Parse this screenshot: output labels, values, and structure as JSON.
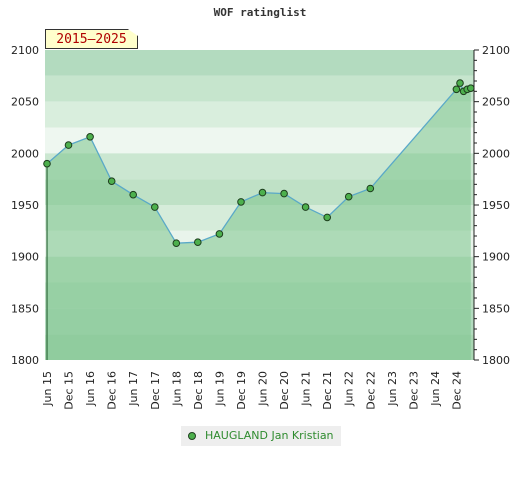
{
  "chart_data": {
    "type": "line",
    "title": "WOF ratinglist",
    "range_label": "2015–2025",
    "ylim": [
      1800,
      2100
    ],
    "y_ticks": [
      1800,
      1850,
      1900,
      1950,
      2000,
      2050,
      2100
    ],
    "x_ticks": [
      "Jun 15",
      "Dec 15",
      "Jun 16",
      "Dec 16",
      "Jun 17",
      "Dec 17",
      "Jun 18",
      "Dec 18",
      "Jun 19",
      "Dec 19",
      "Jun 20",
      "Dec 20",
      "Jun 21",
      "Dec 21",
      "Jun 22",
      "Dec 22",
      "Jun 23",
      "Dec 23",
      "Jun 24",
      "Dec 24"
    ],
    "series": [
      {
        "name": "HAUGLAND Jan Kristian",
        "color": "#4db04d",
        "line_color": "#5aa9c8",
        "points": [
          {
            "x": "2015-06",
            "y": 1990
          },
          {
            "x": "2015-12",
            "y": 2008
          },
          {
            "x": "2016-06",
            "y": 2016
          },
          {
            "x": "2016-12",
            "y": 1973
          },
          {
            "x": "2017-06",
            "y": 1960
          },
          {
            "x": "2017-12",
            "y": 1948
          },
          {
            "x": "2018-06",
            "y": 1913
          },
          {
            "x": "2018-12",
            "y": 1914
          },
          {
            "x": "2019-06",
            "y": 1922
          },
          {
            "x": "2019-12",
            "y": 1953
          },
          {
            "x": "2020-06",
            "y": 1962
          },
          {
            "x": "2020-12",
            "y": 1961
          },
          {
            "x": "2021-06",
            "y": 1948
          },
          {
            "x": "2021-12",
            "y": 1938
          },
          {
            "x": "2022-06",
            "y": 1958
          },
          {
            "x": "2022-12",
            "y": 1966
          },
          {
            "x": "2024-12",
            "y": 2062
          },
          {
            "x": "2025-01",
            "y": 2068
          },
          {
            "x": "2025-02",
            "y": 2060
          },
          {
            "x": "2025-03",
            "y": 2062
          },
          {
            "x": "2025-04",
            "y": 2063
          }
        ]
      }
    ],
    "colors": {
      "bands": [
        "#b3dbbf",
        "#cbe7d1",
        "#deefe2",
        "#eef7f0",
        "#c4e3cb",
        "#a9d6b3",
        "#93cca0"
      ],
      "fill": "#8ccb98",
      "marker": "#4db04d"
    },
    "grid": true
  }
}
